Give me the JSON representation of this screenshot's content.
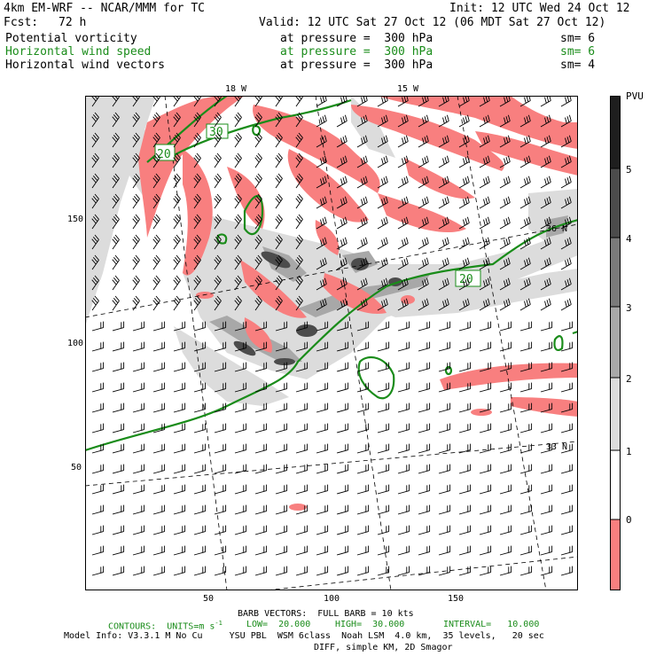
{
  "header": {
    "model": "4km EM-WRF -- NCAR/MMM for TC",
    "init": "Init: 12 UTC Wed 24 Oct 12",
    "fcst_label": "Fcst:",
    "fcst_value": "72 h",
    "valid": "Valid: 12 UTC Sat 27 Oct 12 (06 MDT Sat 27 Oct 12)",
    "fields": [
      {
        "name": "Potential vorticity",
        "level": "at pressure =  300 hPa",
        "sm": "sm= 6",
        "color": "#000000"
      },
      {
        "name": "Horizontal wind speed",
        "level": "at pressure =  300 hPa",
        "sm": "sm= 6",
        "color": "#1a8c1a"
      },
      {
        "name": "Horizontal wind vectors",
        "level": "at pressure =  300 hPa",
        "sm": "sm= 4",
        "color": "#000000"
      }
    ]
  },
  "map": {
    "lon_labels": [
      "18 W",
      "15 W"
    ],
    "lat_labels": [
      "36 N",
      "33 N"
    ],
    "x_ticks": [
      "50",
      "100",
      "150"
    ],
    "y_ticks": [
      "150",
      "100",
      "50"
    ],
    "contour_labels": [
      "30",
      "20",
      "20"
    ],
    "colors": {
      "pv_negative": "#f87f7f",
      "pv_1_2": "#dcdcdc",
      "pv_2_3": "#a8a8a8",
      "pv_3_4": "#7a7a7a",
      "pv_4_5": "#4c4c4c",
      "wind_contour": "#1a8c1a"
    }
  },
  "colorbar": {
    "unit": "PVU",
    "labels": [
      "5",
      "4",
      "3",
      "2",
      "1",
      "0"
    ]
  },
  "footer": {
    "barb": "BARB VECTORS:  FULL BARB = 10 kts",
    "contours": "CONTOURS:  UNITS=m s",
    "contours_exp": "-1",
    "low": "LOW=  20.000",
    "high": "HIGH=  30.000",
    "interval": "INTERVAL=   10.000",
    "model_info": "Model Info: V3.3.1 M No Cu     YSU PBL  WSM 6class  Noah LSM  4.0 km,  35 levels,   20 sec",
    "diff": "DIFF, simple KM, 2D Smagor"
  }
}
